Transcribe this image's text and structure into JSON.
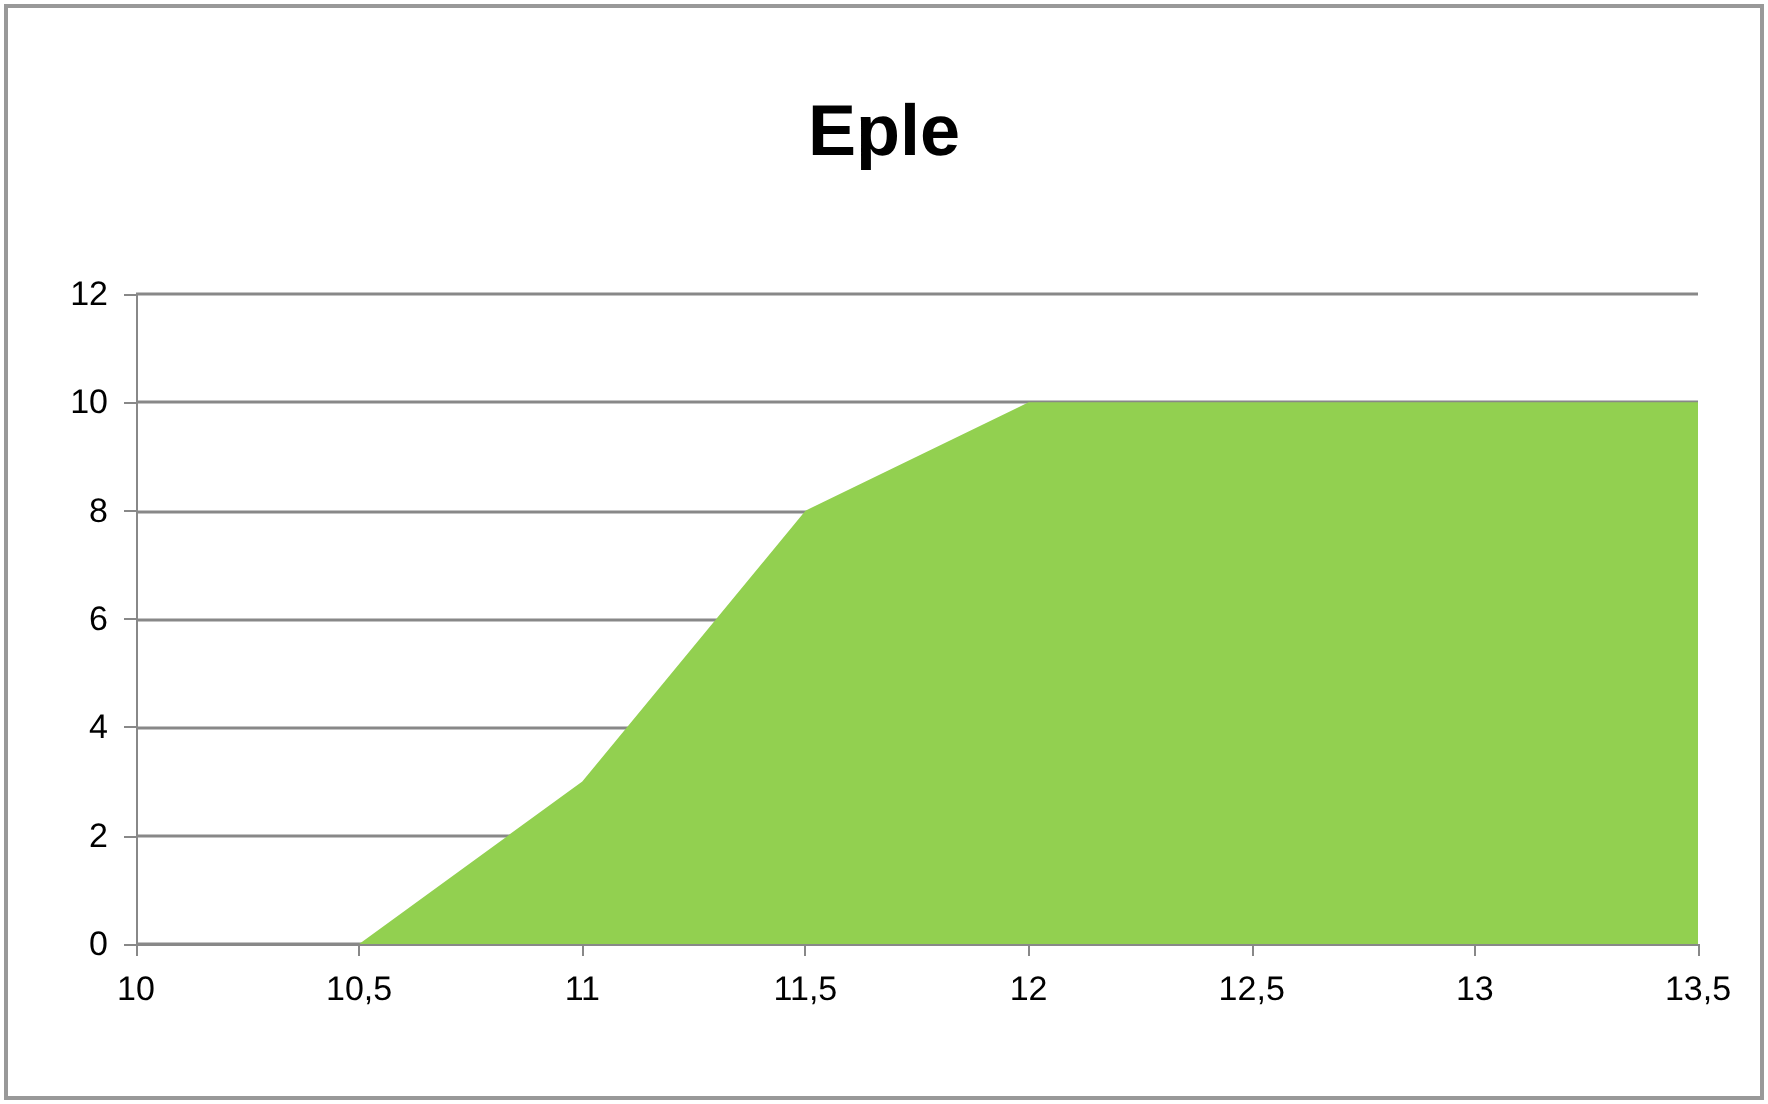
{
  "chart_data": {
    "type": "area",
    "title": "Eple",
    "x": [
      10.5,
      11,
      11.5,
      12,
      12.5,
      13,
      13.5
    ],
    "series": [
      {
        "color": "#92d050",
        "values": [
          0,
          3,
          8,
          10,
          10,
          10,
          10
        ]
      }
    ],
    "xlim": [
      10,
      13.5
    ],
    "xticks": [
      10,
      {
        "value": 10.5,
        "label": "10,5"
      },
      11,
      {
        "value": 11.5,
        "label": "11,5"
      },
      12,
      {
        "value": 12.5,
        "label": "12,5"
      },
      13,
      {
        "value": 13.5,
        "label": "13,5"
      }
    ],
    "ylim": [
      0,
      12
    ],
    "yticks": [
      0,
      2,
      4,
      6,
      8,
      10,
      12
    ],
    "grid": "y"
  }
}
